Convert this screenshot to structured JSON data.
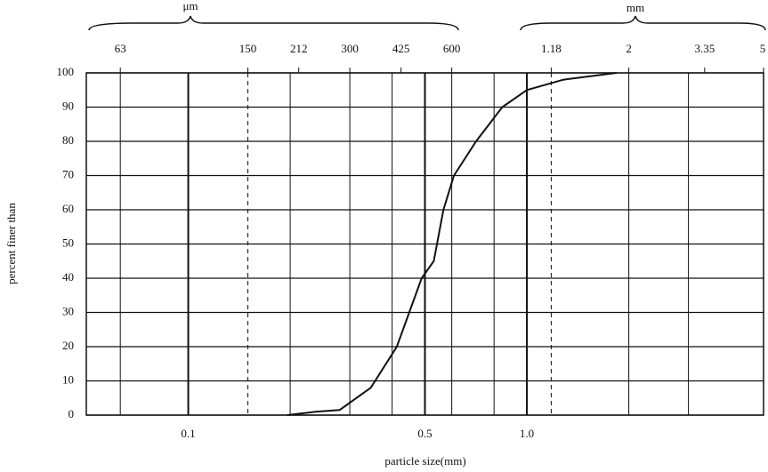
{
  "chart_data": {
    "type": "line",
    "xlabel": "particle size(mm)",
    "ylabel": "percent finer than",
    "top_groups": [
      "μm",
      "mm"
    ],
    "xlim": [
      0.05,
      5
    ],
    "xlog": true,
    "xticks": [
      0.1,
      0.5,
      {
        "value": 1,
        "label": "1.0"
      }
    ],
    "top_ticks": [
      {
        "value": 0.063,
        "label": "63"
      },
      {
        "value": 0.15,
        "label": "150"
      },
      {
        "value": 0.212,
        "label": "212"
      },
      {
        "value": 0.3,
        "label": "300"
      },
      {
        "value": 0.425,
        "label": "425"
      },
      {
        "value": 0.6,
        "label": "600"
      },
      {
        "value": 1.18,
        "label": "1.18"
      },
      2,
      {
        "value": 3.35,
        "label": "3.35"
      },
      5
    ],
    "xgrid": [
      0.063,
      0.2,
      0.3,
      0.4,
      0.5,
      0.6,
      0.8,
      2,
      3
    ],
    "xgrid_dashed": [
      0.15,
      1.18
    ],
    "ylim": [
      0,
      100
    ],
    "yticks": [
      0,
      10,
      20,
      30,
      40,
      50,
      60,
      70,
      80,
      90,
      100
    ],
    "grid": true,
    "series": [
      {
        "color": "#111111",
        "x": [
          0.196,
          0.239,
          0.28,
          0.346,
          0.413,
          0.489,
          0.531,
          0.567,
          0.609,
          0.708,
          0.846,
          1.0,
          1.28,
          1.84
        ],
        "values": [
          0,
          1,
          1.5,
          8,
          20,
          40,
          45,
          60,
          70,
          80,
          90,
          95,
          98,
          100
        ]
      }
    ]
  }
}
